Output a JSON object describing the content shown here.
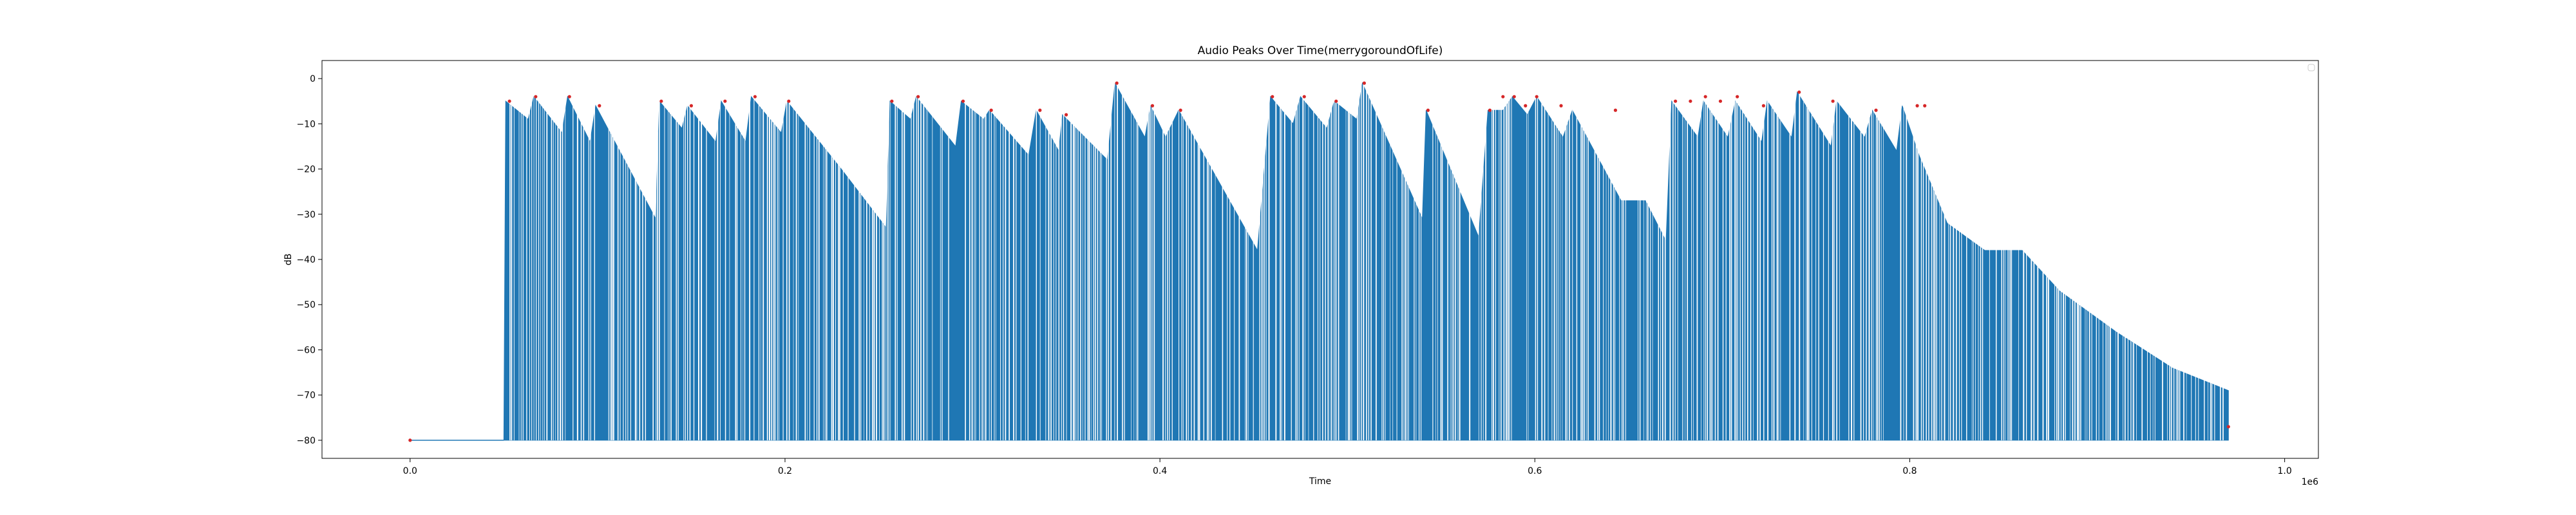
{
  "chart_data": {
    "type": "line",
    "title": "Audio Peaks Over Time(merrygoroundOfLife)",
    "xlabel": "Time",
    "ylabel": "dB",
    "x_multiplier_label": "1e6",
    "x_scale_factor": 1000000,
    "xlim": [
      -47000,
      1018000
    ],
    "ylim": [
      -84,
      4
    ],
    "x_ticks": [
      0,
      200000,
      400000,
      600000,
      800000,
      1000000
    ],
    "x_tick_labels": [
      "0.0",
      "0.2",
      "0.4",
      "0.6",
      "0.8",
      "1.0"
    ],
    "y_ticks": [
      0,
      -10,
      -20,
      -30,
      -40,
      -50,
      -60,
      -70,
      -80
    ],
    "y_tick_labels": [
      "0",
      "−10",
      "−20",
      "−30",
      "−40",
      "−50",
      "−60",
      "−70",
      "−80"
    ],
    "grid": false,
    "legend": "top-right, empty",
    "colors": {
      "series": "#1f77b4",
      "peaks": "#d62728"
    },
    "series": [
      {
        "kind": "envelope",
        "floor": -80,
        "upper_envelope": [
          [
            0,
            -80
          ],
          [
            50000,
            -80
          ],
          [
            51000,
            -5
          ],
          [
            63000,
            -9
          ],
          [
            66000,
            -4
          ],
          [
            81000,
            -12
          ],
          [
            84000,
            -4
          ],
          [
            96000,
            -14
          ],
          [
            99000,
            -6
          ],
          [
            131000,
            -31
          ],
          [
            133000,
            -5
          ],
          [
            145000,
            -11
          ],
          [
            148000,
            -6
          ],
          [
            163000,
            -14
          ],
          [
            166000,
            -5
          ],
          [
            179000,
            -14
          ],
          [
            182000,
            -4
          ],
          [
            198000,
            -12
          ],
          [
            201000,
            -5
          ],
          [
            230000,
            -20
          ],
          [
            254000,
            -33
          ],
          [
            256000,
            -5
          ],
          [
            267000,
            -9
          ],
          [
            270000,
            -4
          ],
          [
            291000,
            -15
          ],
          [
            294000,
            -5
          ],
          [
            306000,
            -9
          ],
          [
            309000,
            -7
          ],
          [
            330000,
            -17
          ],
          [
            334000,
            -7
          ],
          [
            346000,
            -16
          ],
          [
            348000,
            -8
          ],
          [
            372000,
            -18
          ],
          [
            376000,
            -1
          ],
          [
            392000,
            -13
          ],
          [
            395000,
            -6
          ],
          [
            403000,
            -13
          ],
          [
            410000,
            -7
          ],
          [
            452000,
            -38
          ],
          [
            459000,
            -4
          ],
          [
            471000,
            -10
          ],
          [
            475000,
            -4
          ],
          [
            489000,
            -11
          ],
          [
            493000,
            -5
          ],
          [
            505000,
            -9
          ],
          [
            508000,
            -1
          ],
          [
            540000,
            -31
          ],
          [
            542000,
            -7
          ],
          [
            570000,
            -35
          ],
          [
            575000,
            -7
          ],
          [
            583000,
            -7
          ],
          [
            588000,
            -4
          ],
          [
            596000,
            -8
          ],
          [
            601000,
            -4
          ],
          [
            615000,
            -13
          ],
          [
            620000,
            -7
          ],
          [
            646000,
            -27
          ],
          [
            659000,
            -27
          ],
          [
            670000,
            -36
          ],
          [
            673000,
            -5
          ],
          [
            687000,
            -13
          ],
          [
            690000,
            -5
          ],
          [
            703000,
            -13
          ],
          [
            707000,
            -5
          ],
          [
            721000,
            -14
          ],
          [
            724000,
            -5
          ],
          [
            737000,
            -13
          ],
          [
            740000,
            -3
          ],
          [
            758000,
            -15
          ],
          [
            761000,
            -5
          ],
          [
            776000,
            -13
          ],
          [
            780000,
            -7
          ],
          [
            793000,
            -16
          ],
          [
            796000,
            -6
          ],
          [
            805000,
            -17
          ],
          [
            820000,
            -32
          ],
          [
            840000,
            -38
          ],
          [
            860000,
            -38
          ],
          [
            880000,
            -47
          ],
          [
            910000,
            -56
          ],
          [
            940000,
            -64
          ],
          [
            970000,
            -69
          ],
          [
            970000,
            -77
          ]
        ]
      },
      {
        "name": "",
        "kind": "peaks",
        "points": [
          [
            0,
            -80
          ],
          [
            53000,
            -5
          ],
          [
            67000,
            -4
          ],
          [
            85000,
            -4
          ],
          [
            101000,
            -6
          ],
          [
            134000,
            -5
          ],
          [
            150000,
            -6
          ],
          [
            168000,
            -5
          ],
          [
            184000,
            -4
          ],
          [
            202000,
            -5
          ],
          [
            257000,
            -5
          ],
          [
            271000,
            -4
          ],
          [
            295000,
            -5
          ],
          [
            310000,
            -7
          ],
          [
            336000,
            -7
          ],
          [
            350000,
            -8
          ],
          [
            377000,
            -1
          ],
          [
            396000,
            -6
          ],
          [
            411000,
            -7
          ],
          [
            460000,
            -4
          ],
          [
            477000,
            -4
          ],
          [
            494000,
            -5
          ],
          [
            509000,
            -1
          ],
          [
            543000,
            -7
          ],
          [
            576000,
            -7
          ],
          [
            583000,
            -4
          ],
          [
            589000,
            -4
          ],
          [
            595000,
            -6
          ],
          [
            601000,
            -4
          ],
          [
            614000,
            -6
          ],
          [
            643000,
            -7
          ],
          [
            675000,
            -5
          ],
          [
            683000,
            -5
          ],
          [
            691000,
            -4
          ],
          [
            699000,
            -5
          ],
          [
            708000,
            -4
          ],
          [
            722000,
            -6
          ],
          [
            741000,
            -3
          ],
          [
            759000,
            -5
          ],
          [
            782000,
            -7
          ],
          [
            804000,
            -6
          ],
          [
            808000,
            -6
          ],
          [
            970000,
            -77
          ]
        ]
      }
    ]
  }
}
